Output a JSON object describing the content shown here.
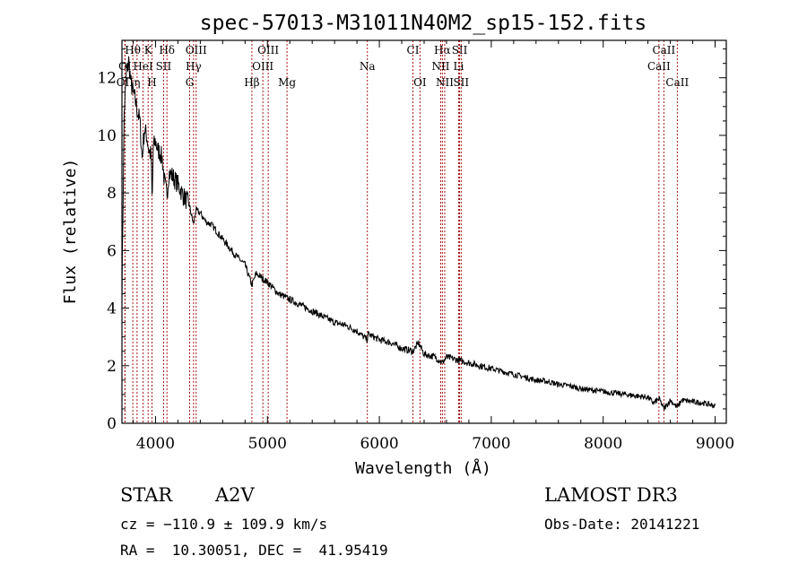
{
  "chart_data": {
    "type": "line",
    "title": "spec-57013-M31011N40M2_sp15-152.fits",
    "xlabel": "Wavelength (Å)",
    "ylabel": "Flux (relative)",
    "xlim": [
      3700,
      9100
    ],
    "ylim": [
      0,
      13.3
    ],
    "xticks": [
      4000,
      5000,
      6000,
      7000,
      8000,
      9000
    ],
    "yticks": [
      0,
      2,
      4,
      6,
      8,
      10,
      12
    ],
    "series": [
      {
        "name": "spectrum",
        "x": [
          3700,
          3720,
          3740,
          3760,
          3780,
          3800,
          3820,
          3840,
          3860,
          3880,
          3900,
          3920,
          3940,
          3960,
          3970,
          3980,
          4000,
          4020,
          4040,
          4060,
          4080,
          4102,
          4120,
          4150,
          4200,
          4250,
          4300,
          4340,
          4360,
          4400,
          4450,
          4500,
          4600,
          4700,
          4800,
          4861,
          4900,
          5000,
          5100,
          5200,
          5300,
          5400,
          5500,
          5600,
          5700,
          5800,
          5890,
          5900,
          6000,
          6100,
          6200,
          6300,
          6350,
          6400,
          6500,
          6563,
          6600,
          6700,
          6800,
          6900,
          7000,
          7100,
          7200,
          7300,
          7400,
          7500,
          7600,
          7700,
          7800,
          7900,
          8000,
          8100,
          8200,
          8300,
          8400,
          8450,
          8500,
          8542,
          8600,
          8662,
          8700,
          8800,
          8900,
          9000
        ],
        "values": [
          4.5,
          10.8,
          12.1,
          12.6,
          11.8,
          11.5,
          11.2,
          10.8,
          10.5,
          9.2,
          10.2,
          10.0,
          9.5,
          9.3,
          7.5,
          9.6,
          9.8,
          9.5,
          9.4,
          9.2,
          8.4,
          7.9,
          8.7,
          8.6,
          8.3,
          7.9,
          7.6,
          6.9,
          7.4,
          7.3,
          7.0,
          6.9,
          6.4,
          5.9,
          5.5,
          4.8,
          5.2,
          4.9,
          4.5,
          4.3,
          4.1,
          3.9,
          3.7,
          3.5,
          3.4,
          3.2,
          2.9,
          3.1,
          2.9,
          2.8,
          2.6,
          2.5,
          2.8,
          2.4,
          2.3,
          2.1,
          2.3,
          2.2,
          2.1,
          2.0,
          1.9,
          1.8,
          1.7,
          1.6,
          1.5,
          1.45,
          1.35,
          1.3,
          1.2,
          1.15,
          1.1,
          1.05,
          1.0,
          0.95,
          0.9,
          0.7,
          0.85,
          0.5,
          0.8,
          0.55,
          0.8,
          0.75,
          0.7,
          0.6
        ]
      }
    ],
    "lines": [
      {
        "label": "Hθ",
        "x": 3797,
        "row": 0
      },
      {
        "label": "K",
        "x": 3934,
        "row": 0
      },
      {
        "label": "Hδ",
        "x": 4102,
        "row": 0
      },
      {
        "label": "OIII",
        "x": 4363,
        "row": 0
      },
      {
        "label": "OIII",
        "x": 5007,
        "row": 0
      },
      {
        "label": "CI",
        "x": 6300,
        "row": 0
      },
      {
        "label": "Hα",
        "x": 6563,
        "row": 0
      },
      {
        "label": "SII",
        "x": 6717,
        "row": 0
      },
      {
        "label": "CaII",
        "x": 8542,
        "row": 0
      },
      {
        "label": "OI",
        "x": 3727,
        "row": 1
      },
      {
        "label": "HeI",
        "x": 3889,
        "row": 1
      },
      {
        "label": "SII",
        "x": 4072,
        "row": 1
      },
      {
        "label": "Hγ",
        "x": 4340,
        "row": 1
      },
      {
        "label": "OIII",
        "x": 4959,
        "row": 1
      },
      {
        "label": "Na",
        "x": 5893,
        "row": 1
      },
      {
        "label": "NII",
        "x": 6548,
        "row": 1
      },
      {
        "label": "Li",
        "x": 6708,
        "row": 1
      },
      {
        "label": "CaII",
        "x": 8498,
        "row": 1
      },
      {
        "label": "OII",
        "x": 3727,
        "row": 2
      },
      {
        "label": "η",
        "x": 3835,
        "row": 2
      },
      {
        "label": "H",
        "x": 3968,
        "row": 2
      },
      {
        "label": "G",
        "x": 4305,
        "row": 2
      },
      {
        "label": "Hβ",
        "x": 4861,
        "row": 2
      },
      {
        "label": "Mg",
        "x": 5175,
        "row": 2
      },
      {
        "label": "OI",
        "x": 6363,
        "row": 2
      },
      {
        "label": "NII",
        "x": 6584,
        "row": 2
      },
      {
        "label": "SII",
        "x": 6731,
        "row": 2
      },
      {
        "label": "CaII",
        "x": 8662,
        "row": 2
      }
    ]
  },
  "info": {
    "class": "STAR",
    "subclass": "A2V",
    "survey": "LAMOST DR3",
    "cz": "cz = −110.9 ± 109.9 km/s",
    "obs_date": "Obs-Date: 20141221",
    "coords": "RA =  10.30051, DEC =  41.95419"
  }
}
